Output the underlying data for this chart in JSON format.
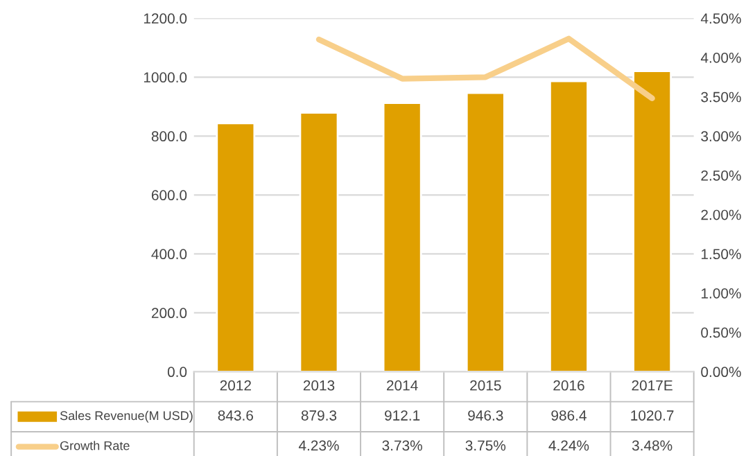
{
  "chart_data": {
    "type": "bar",
    "categories": [
      "2012",
      "2013",
      "2014",
      "2015",
      "2016",
      "2017E"
    ],
    "series": [
      {
        "name": "Sales Revenue(M USD)",
        "color": "#e0a000",
        "values": [
          843.6,
          879.3,
          912.1,
          946.3,
          986.4,
          1020.7
        ],
        "value_labels": [
          "843.6",
          "879.3",
          "912.1",
          "946.3",
          "986.4",
          "1020.7"
        ]
      },
      {
        "name": "Growth Rate",
        "type": "line",
        "axis": "y2",
        "color": "#f8cf8a",
        "values": [
          null,
          4.23,
          3.73,
          3.75,
          4.24,
          3.48
        ],
        "value_labels": [
          null,
          "4.23%",
          "3.73%",
          "3.75%",
          "4.24%",
          "3.48%"
        ]
      }
    ],
    "ylim": [
      0,
      1200
    ],
    "yticks": [
      {
        "value": 0,
        "label": "0.0"
      },
      {
        "value": 200,
        "label": "200.0"
      },
      {
        "value": 400,
        "label": "400.0"
      },
      {
        "value": 600,
        "label": "600.0"
      },
      {
        "value": 800,
        "label": "800.0"
      },
      {
        "value": 1000,
        "label": "1000.0"
      },
      {
        "value": 1200,
        "label": "1200.0"
      }
    ],
    "y2lim": [
      0,
      4.5
    ],
    "y2ticks": [
      {
        "value": 0,
        "label": "0.00%"
      },
      {
        "value": 0.5,
        "label": "0.50%"
      },
      {
        "value": 1,
        "label": "1.00%"
      },
      {
        "value": 1.5,
        "label": "1.50%"
      },
      {
        "value": 2,
        "label": "2.00%"
      },
      {
        "value": 2.5,
        "label": "2.50%"
      },
      {
        "value": 3,
        "label": "3.00%"
      },
      {
        "value": 3.5,
        "label": "3.50%"
      },
      {
        "value": 4,
        "label": "4.00%"
      },
      {
        "value": 4.5,
        "label": "4.50%"
      }
    ],
    "grid": "y",
    "legend": "bottom"
  }
}
